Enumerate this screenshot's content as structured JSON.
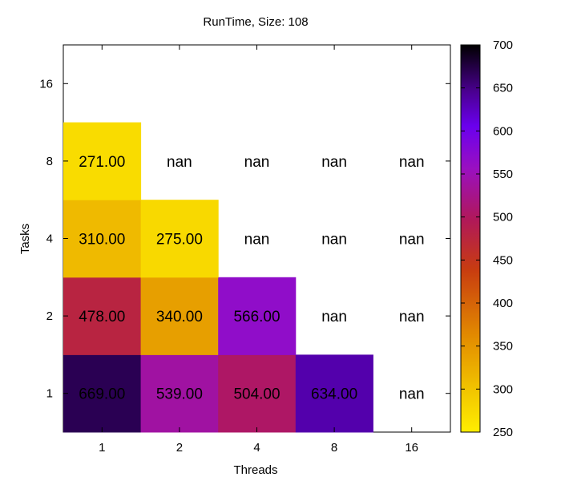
{
  "chart_data": {
    "type": "heatmap",
    "title": "RunTime, Size: 108",
    "xlabel": "Threads",
    "ylabel": "Tasks",
    "x_categories": [
      "1",
      "2",
      "4",
      "8",
      "16"
    ],
    "y_categories": [
      "1",
      "2",
      "4",
      "8",
      "16"
    ],
    "cells": [
      [
        "669.00",
        "539.00",
        "504.00",
        "634.00",
        "nan"
      ],
      [
        "478.00",
        "340.00",
        "566.00",
        "nan",
        "nan"
      ],
      [
        "310.00",
        "275.00",
        "nan",
        "nan",
        "nan"
      ],
      [
        "271.00",
        "nan",
        "nan",
        "nan",
        "nan"
      ],
      [
        null,
        null,
        null,
        null,
        null
      ]
    ],
    "colorbar": {
      "min": 250,
      "max": 700,
      "ticks": [
        "250",
        "300",
        "350",
        "400",
        "450",
        "500",
        "550",
        "600",
        "650",
        "700"
      ],
      "palette": "gnuplot-inverted (yellow → orange → red → magenta → purple → black)"
    },
    "grid": false,
    "legend": "colorbar-right"
  }
}
